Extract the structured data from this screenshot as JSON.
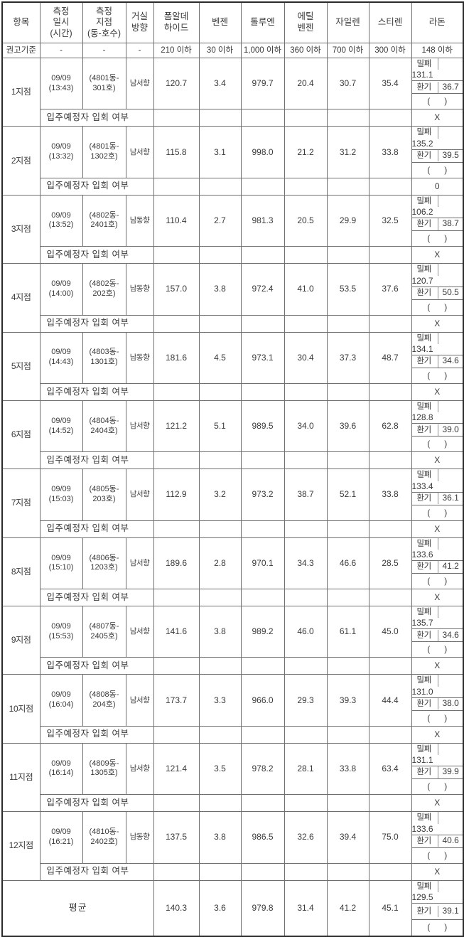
{
  "header": {
    "columns": [
      "항목",
      "측정\n일시\n(시간)",
      "측정\n지점\n(동-호수)",
      "거실\n방향",
      "폼알데\n하이드",
      "벤젠",
      "톨루엔",
      "에틸\n벤젠",
      "자일렌",
      "스티렌",
      "라돈"
    ]
  },
  "standards": {
    "label": "권고기준",
    "values": [
      "-",
      "-",
      "-",
      "210 이하",
      "30 이하",
      "1,000 이하",
      "360 이하",
      "700 이하",
      "300 이하",
      "148 이하"
    ]
  },
  "labels": {
    "sealed": "밀폐",
    "vent": "환기",
    "paren": "(      )",
    "attendance": "입주예정자 입회 여부"
  },
  "points": [
    {
      "label": "1지점",
      "datetime": "09/09\n(13:43)",
      "location": "(4801동-\n301호)",
      "direction": "남서향",
      "values": [
        "120.7",
        "3.4",
        "979.7",
        "20.4",
        "30.7",
        "35.4"
      ],
      "radon_sealed": "131.1",
      "radon_vent": "36.7",
      "attendance": "X"
    },
    {
      "label": "2지점",
      "datetime": "09/09\n(13:32)",
      "location": "(4801동-\n1302호)",
      "direction": "남서향",
      "values": [
        "115.8",
        "3.1",
        "998.0",
        "21.2",
        "31.2",
        "33.8"
      ],
      "radon_sealed": "135.2",
      "radon_vent": "39.5",
      "attendance": "0"
    },
    {
      "label": "3지점",
      "datetime": "09/09\n(13:52)",
      "location": "(4802동-\n2401호)",
      "direction": "남동향",
      "values": [
        "110.4",
        "2.7",
        "981.3",
        "20.5",
        "29.9",
        "32.5"
      ],
      "radon_sealed": "106.2",
      "radon_vent": "38.7",
      "attendance": "X"
    },
    {
      "label": "4지점",
      "datetime": "09/09\n(14:00)",
      "location": "(4802동-\n202호)",
      "direction": "남동향",
      "values": [
        "157.0",
        "3.8",
        "972.4",
        "41.0",
        "53.5",
        "37.6"
      ],
      "radon_sealed": "120.7",
      "radon_vent": "50.5",
      "attendance": "X"
    },
    {
      "label": "5지점",
      "datetime": "09/09\n(14:43)",
      "location": "(4803동-\n1301호)",
      "direction": "남동향",
      "values": [
        "181.6",
        "4.5",
        "973.1",
        "30.4",
        "37.3",
        "48.7"
      ],
      "radon_sealed": "134.1",
      "radon_vent": "34.6",
      "attendance": "X"
    },
    {
      "label": "6지점",
      "datetime": "09/09\n(14:52)",
      "location": "(4804동-\n2404호)",
      "direction": "남서향",
      "values": [
        "121.2",
        "5.1",
        "989.5",
        "34.0",
        "39.6",
        "62.8"
      ],
      "radon_sealed": "128.8",
      "radon_vent": "39.0",
      "attendance": "X"
    },
    {
      "label": "7지점",
      "datetime": "09/09\n(15:03)",
      "location": "(4805동-\n203호)",
      "direction": "남서향",
      "values": [
        "112.9",
        "3.2",
        "973.2",
        "38.7",
        "52.1",
        "33.8"
      ],
      "radon_sealed": "133.4",
      "radon_vent": "36.1",
      "attendance": "X"
    },
    {
      "label": "8지점",
      "datetime": "09/09\n(15:10)",
      "location": "(4806동-\n1203호)",
      "direction": "남서향",
      "values": [
        "189.6",
        "2.8",
        "970.1",
        "34.3",
        "46.6",
        "28.5"
      ],
      "radon_sealed": "133.6",
      "radon_vent": "41.2",
      "attendance": "X"
    },
    {
      "label": "9지점",
      "datetime": "09/09\n(15:53)",
      "location": "(4807동-\n2405호)",
      "direction": "남서향",
      "values": [
        "141.6",
        "3.8",
        "989.2",
        "46.0",
        "61.1",
        "45.0"
      ],
      "radon_sealed": "135.7",
      "radon_vent": "34.6",
      "attendance": "X"
    },
    {
      "label": "10지점",
      "datetime": "09/09\n(16:04)",
      "location": "(4808동-\n204호)",
      "direction": "남서향",
      "values": [
        "173.7",
        "3.3",
        "966.0",
        "29.3",
        "39.3",
        "44.4"
      ],
      "radon_sealed": "131.0",
      "radon_vent": "38.0",
      "attendance": "X"
    },
    {
      "label": "11지점",
      "datetime": "09/09\n(16:14)",
      "location": "(4809동-\n1305호)",
      "direction": "남서향",
      "values": [
        "121.4",
        "3.5",
        "978.2",
        "28.1",
        "33.8",
        "63.4"
      ],
      "radon_sealed": "131.1",
      "radon_vent": "39.9",
      "attendance": "X"
    },
    {
      "label": "12지점",
      "datetime": "09/09\n(16:21)",
      "location": "(4810동-\n2402호)",
      "direction": "남동향",
      "values": [
        "137.5",
        "3.8",
        "986.5",
        "32.6",
        "39.4",
        "75.0"
      ],
      "radon_sealed": "133.6",
      "radon_vent": "40.6",
      "attendance": "X"
    }
  ],
  "average": {
    "label": "평균",
    "values": [
      "140.3",
      "3.6",
      "979.8",
      "31.4",
      "41.2",
      "45.1"
    ],
    "radon_sealed": "129.5",
    "radon_vent": "39.1"
  },
  "chemical_keys": [
    "formaldehyde",
    "benzene",
    "toluene",
    "ethylbenzene",
    "xylene",
    "styrene"
  ]
}
